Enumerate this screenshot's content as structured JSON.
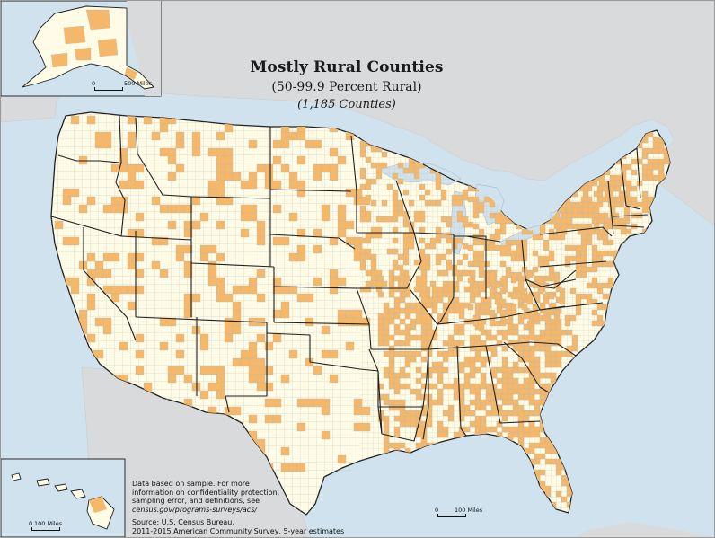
{
  "map": {
    "title": "Mostly Rural Counties",
    "subtitle": "(50-99.9 Percent Rural)",
    "count_label": "(1,185 Counties)",
    "notes": {
      "line1": "Data based on sample. For more",
      "line2": "information on confidentiality protection,",
      "line3": "sampling error, and definitions, see",
      "url": "census.gov/programs-surveys/acs/",
      "source1": "Source: U.S. Census Bureau,",
      "source2": "2011-2015 American Community Survey, 5-year estimates"
    },
    "scales": {
      "alaska": {
        "zero": "0",
        "label": "500 Miles"
      },
      "hawaii": {
        "zero": "0",
        "label": "100 Miles"
      },
      "conus": {
        "zero": "0",
        "label": "100 Miles"
      }
    },
    "colors": {
      "water": "#cfe2ee",
      "land_background": "#d9dadb",
      "us_land": "#fefbe6",
      "highlight": "#f5b76a",
      "county_border": "#b9b7a7",
      "state_border": "#1f1f1f"
    }
  }
}
